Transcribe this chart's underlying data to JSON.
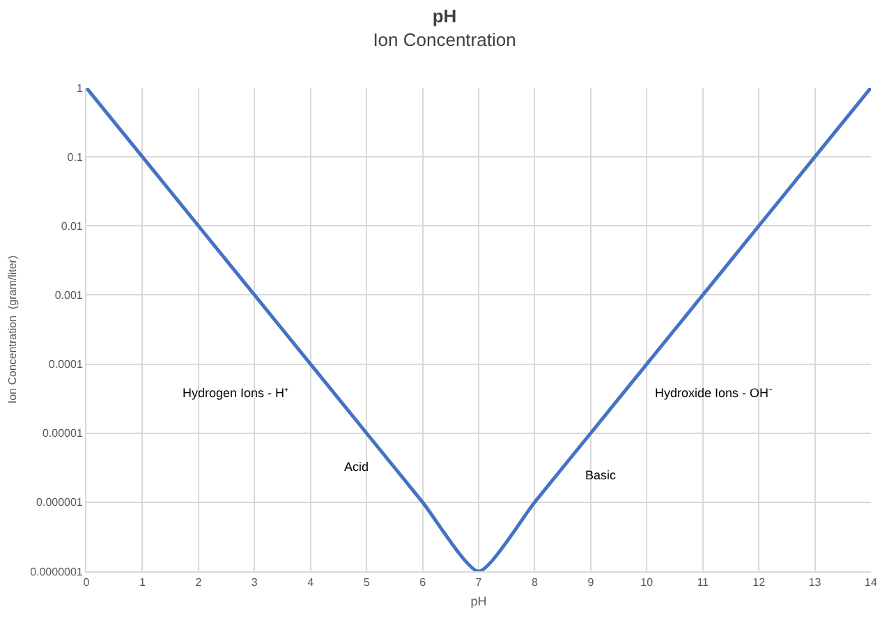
{
  "chart_data": {
    "type": "line",
    "title": "pH",
    "subtitle": "Ion Concentration",
    "xlabel": "pH",
    "ylabel": "Ion Concentration  (gram/liter)",
    "x": [
      0,
      1,
      2,
      3,
      4,
      5,
      6,
      7,
      8,
      9,
      10,
      11,
      12,
      13,
      14
    ],
    "series": [
      {
        "color": "#4472c4",
        "values": [
          1,
          0.1,
          0.01,
          0.001,
          0.0001,
          1e-05,
          1e-06,
          1e-07,
          1e-06,
          1e-05,
          0.0001,
          0.001,
          0.01,
          0.1,
          1
        ]
      }
    ],
    "log": "y",
    "grid": true,
    "marker": "none",
    "line_style": "solid",
    "xlim": [
      0,
      14
    ],
    "xticks": [
      0,
      1,
      2,
      3,
      4,
      5,
      6,
      7,
      8,
      9,
      10,
      11,
      12,
      13,
      14
    ],
    "ylim": [
      1e-07,
      1
    ],
    "yticks": [
      {
        "value": 1e-07,
        "label": "0.0000001"
      },
      {
        "value": 1e-06,
        "label": "0.000001"
      },
      {
        "value": 1e-05,
        "label": "0.00001"
      },
      {
        "value": 0.0001,
        "label": "0.0001"
      },
      {
        "value": 0.001,
        "label": "0.001"
      },
      {
        "value": 0.01,
        "label": "0.01"
      },
      {
        "value": 0.1,
        "label": "0.1"
      },
      {
        "value": 1,
        "label": "1"
      }
    ],
    "annotations": [
      "Hydrogen Ions - H⁺",
      "Acid",
      "Basic",
      "Hydroxide Ions - OH⁻"
    ]
  }
}
